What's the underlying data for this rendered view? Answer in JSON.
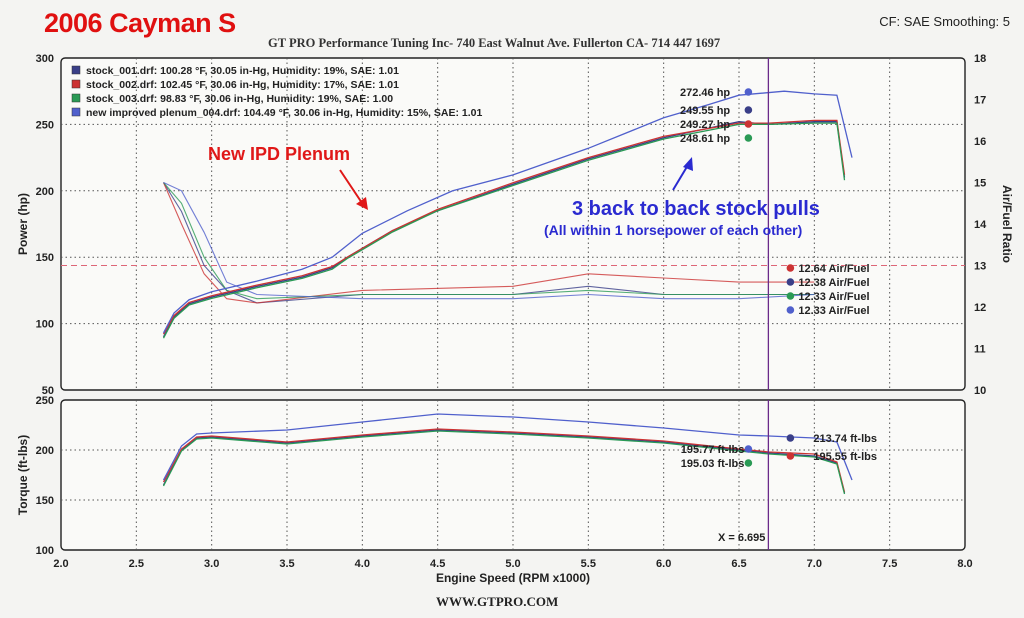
{
  "header": {
    "title": "2006 Cayman S",
    "settings": "CF: SAE  Smoothing: 5",
    "shop": "GT PRO Performance Tuning Inc- 740 East Walnut Ave. Fullerton CA- 714 447 1697",
    "footer": "WWW.GTPRO.COM"
  },
  "chart_data": [
    {
      "type": "line",
      "name": "power-afr",
      "ylabel": "Power (hp)",
      "y2label": "Air/Fuel Ratio",
      "xlim": [
        2.0,
        8.0
      ],
      "ylim": [
        50,
        300
      ],
      "y2lim": [
        10,
        18
      ],
      "x_ticks": [
        "2.0",
        "2.5",
        "3.0",
        "3.5",
        "4.0",
        "4.5",
        "5.0",
        "5.5",
        "6.0",
        "6.5",
        "7.0",
        "7.5",
        "8.0"
      ],
      "y_ticks": [
        "50",
        "100",
        "150",
        "200",
        "250",
        "300"
      ],
      "y2_ticks": [
        "10",
        "11",
        "12",
        "13",
        "14",
        "15",
        "16",
        "17",
        "18"
      ],
      "grid": true,
      "legend_position": "top-left",
      "colors": [
        "#3a3f88",
        "#cc3333",
        "#2a9a55",
        "#5060cc"
      ],
      "legend": [
        "stock_001.drf: 100.28 °F, 30.05 in-Hg, Humidity: 19%, SAE: 1.01",
        "stock_002.drf: 102.45 °F, 30.06 in-Hg, Humidity: 17%, SAE: 1.01",
        "stock_003.drf: 98.83 °F, 30.06 in-Hg, Humidity: 19%, SAE: 1.00",
        "new improved plenum_004.drf: 104.49 °F, 30.06 in-Hg, Humidity: 15%, SAE: 1.01"
      ],
      "power_series": [
        {
          "x": [
            2.68,
            2.75,
            2.85,
            3.0,
            3.3,
            3.6,
            3.8,
            3.9,
            4.2,
            4.5,
            5.0,
            5.5,
            6.0,
            6.5,
            6.7,
            7.0,
            7.15,
            7.2
          ],
          "y": [
            90,
            105,
            115,
            120,
            128,
            135,
            142,
            150,
            170,
            185,
            205,
            224,
            240,
            252,
            250,
            252,
            252,
            210
          ]
        },
        {
          "x": [
            2.68,
            2.75,
            2.85,
            3.0,
            3.3,
            3.6,
            3.8,
            3.9,
            4.2,
            4.5,
            5.0,
            5.5,
            6.0,
            6.5,
            6.7,
            7.0,
            7.15,
            7.2
          ],
          "y": [
            92,
            106,
            116,
            121,
            129,
            136,
            143,
            150,
            170,
            186,
            206,
            225,
            241,
            251,
            251,
            253,
            253,
            212
          ]
        },
        {
          "x": [
            2.68,
            2.75,
            2.85,
            3.0,
            3.3,
            3.6,
            3.8,
            3.9,
            4.2,
            4.5,
            5.0,
            5.5,
            6.0,
            6.5,
            6.7,
            7.0,
            7.15,
            7.2
          ],
          "y": [
            89,
            104,
            114,
            119,
            127,
            134,
            141,
            149,
            169,
            185,
            204,
            223,
            239,
            250,
            250,
            251,
            251,
            208
          ]
        },
        {
          "x": [
            2.68,
            2.75,
            2.85,
            3.0,
            3.3,
            3.6,
            3.8,
            4.0,
            4.3,
            4.6,
            5.0,
            5.5,
            6.0,
            6.3,
            6.5,
            6.8,
            7.0,
            7.15,
            7.25
          ],
          "y": [
            93,
            108,
            118,
            124,
            132,
            141,
            150,
            168,
            185,
            200,
            212,
            232,
            255,
            265,
            272,
            275,
            273,
            272,
            225
          ]
        }
      ],
      "afr_series": [
        {
          "x": [
            2.68,
            2.8,
            2.95,
            3.1,
            3.3,
            4.0,
            5.0,
            5.5,
            6.0,
            6.5,
            7.0
          ],
          "y": [
            15.0,
            14.3,
            13.0,
            12.4,
            12.1,
            12.3,
            12.3,
            12.5,
            12.3,
            12.3,
            12.3
          ]
        },
        {
          "x": [
            2.68,
            2.8,
            2.95,
            3.1,
            3.3,
            4.0,
            5.0,
            5.5,
            6.0,
            6.5,
            7.0
          ],
          "y": [
            15.0,
            14.0,
            12.8,
            12.2,
            12.1,
            12.4,
            12.5,
            12.8,
            12.7,
            12.6,
            12.6
          ]
        },
        {
          "x": [
            2.68,
            2.8,
            2.95,
            3.1,
            3.3,
            4.0,
            5.0,
            5.5,
            6.0,
            6.5,
            7.0
          ],
          "y": [
            15.0,
            14.5,
            13.2,
            12.4,
            12.2,
            12.3,
            12.3,
            12.4,
            12.3,
            12.3,
            12.3
          ]
        },
        {
          "x": [
            2.68,
            2.8,
            2.95,
            3.1,
            3.3,
            4.0,
            5.0,
            5.5,
            6.0,
            6.5,
            7.0
          ],
          "y": [
            15.0,
            14.8,
            13.8,
            12.6,
            12.3,
            12.2,
            12.2,
            12.3,
            12.2,
            12.2,
            12.3
          ]
        }
      ],
      "reference_line_afr": 13.0,
      "cursor_x": 6.695,
      "power_labels": [
        "272.46 hp",
        "249.55 hp",
        "249.27 hp",
        "248.61 hp"
      ],
      "power_label_values": [
        272.46,
        249.55,
        249.27,
        248.61
      ],
      "afr_labels": [
        "12.64 Air/Fuel",
        "12.38 Air/Fuel",
        "12.33 Air/Fuel",
        "12.33 Air/Fuel"
      ],
      "afr_label_values": [
        12.64,
        12.38,
        12.33,
        12.33
      ],
      "annotations": {
        "plenum": "New IPD Plenum",
        "stock": "3 back to back stock pulls",
        "stock_sub": "(All within 1 horsepower of each other)"
      }
    },
    {
      "type": "line",
      "name": "torque",
      "xlabel": "Engine Speed (RPM x1000)",
      "ylabel": "Torque (ft-lbs)",
      "xlim": [
        2.0,
        8.0
      ],
      "ylim": [
        100,
        250
      ],
      "x_ticks": [
        "2.0",
        "2.5",
        "3.0",
        "3.5",
        "4.0",
        "4.5",
        "5.0",
        "5.5",
        "6.0",
        "6.5",
        "7.0",
        "7.5",
        "8.0"
      ],
      "y_ticks": [
        "100",
        "150",
        "200",
        "250"
      ],
      "grid": true,
      "series": [
        {
          "x": [
            2.68,
            2.8,
            2.9,
            3.0,
            3.5,
            4.0,
            4.5,
            5.0,
            5.5,
            6.0,
            6.5,
            6.7,
            7.0,
            7.15,
            7.2
          ],
          "y": [
            165,
            200,
            212,
            213,
            207,
            214,
            220,
            217,
            213,
            208,
            200,
            197,
            194,
            187,
            157
          ]
        },
        {
          "x": [
            2.68,
            2.8,
            2.9,
            3.0,
            3.5,
            4.0,
            4.5,
            5.0,
            5.5,
            6.0,
            6.5,
            6.7,
            7.0,
            7.15,
            7.2
          ],
          "y": [
            168,
            201,
            213,
            214,
            208,
            215,
            221,
            218,
            214,
            209,
            201,
            198,
            196,
            188,
            158
          ]
        },
        {
          "x": [
            2.68,
            2.8,
            2.9,
            3.0,
            3.5,
            4.0,
            4.5,
            5.0,
            5.5,
            6.0,
            6.5,
            6.7,
            7.0,
            7.15,
            7.2
          ],
          "y": [
            164,
            199,
            211,
            212,
            206,
            213,
            219,
            216,
            212,
            207,
            199,
            196,
            193,
            186,
            156
          ]
        },
        {
          "x": [
            2.68,
            2.8,
            2.9,
            3.0,
            3.5,
            4.0,
            4.5,
            5.0,
            5.5,
            6.0,
            6.5,
            6.7,
            7.0,
            7.15,
            7.25
          ],
          "y": [
            170,
            204,
            216,
            217,
            220,
            228,
            236,
            233,
            228,
            222,
            215,
            214,
            212,
            208,
            170
          ]
        }
      ],
      "cursor_label": "X = 6.695",
      "labels": [
        "213.74 ft-lbs",
        "195.77 ft-lbs",
        "195.55 ft-lbs",
        "195.03 ft-lbs"
      ],
      "label_values": [
        213.74,
        195.77,
        195.55,
        195.03
      ]
    }
  ]
}
